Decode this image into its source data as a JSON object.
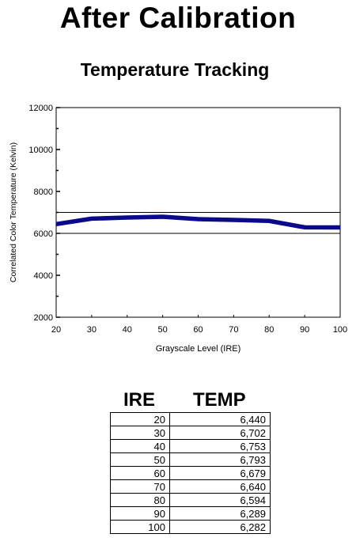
{
  "page_title": "After Calibration",
  "chart_data": {
    "type": "line",
    "title": "Temperature Tracking",
    "xlabel": "Grayscale Level (IRE)",
    "ylabel": "Correlated Color Temperature (Kelvin)",
    "x": [
      20,
      30,
      40,
      50,
      60,
      70,
      80,
      90,
      100
    ],
    "series": [
      {
        "values": [
          6440,
          6702,
          6753,
          6793,
          6679,
          6640,
          6594,
          6289,
          6282
        ],
        "color": "#0a0a8a"
      }
    ],
    "reference_lines": [
      7000,
      6000
    ],
    "xlim": [
      20,
      100
    ],
    "ylim": [
      2000,
      12000
    ],
    "x_ticks": [
      20,
      30,
      40,
      50,
      60,
      70,
      80,
      90,
      100
    ],
    "y_ticks": [
      2000,
      4000,
      6000,
      8000,
      10000,
      12000
    ],
    "grid": false
  },
  "table": {
    "headers": [
      "IRE",
      "TEMP"
    ],
    "rows": [
      [
        "20",
        "6,440"
      ],
      [
        "30",
        "6,702"
      ],
      [
        "40",
        "6,753"
      ],
      [
        "50",
        "6,793"
      ],
      [
        "60",
        "6,679"
      ],
      [
        "70",
        "6,640"
      ],
      [
        "80",
        "6,594"
      ],
      [
        "90",
        "6,289"
      ],
      [
        "100",
        "6,282"
      ]
    ]
  }
}
